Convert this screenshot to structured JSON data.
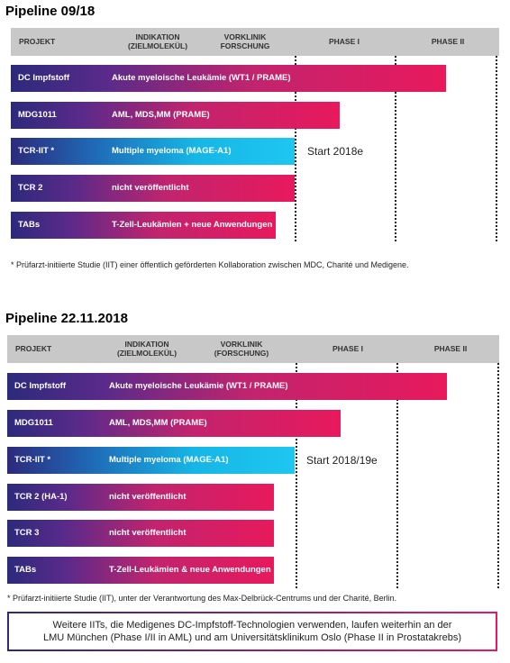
{
  "pipeline1": {
    "title": "Pipeline 09/18",
    "headers": {
      "projekt": "PROJEKT",
      "indikation": "INDIKATION\n(ZIELMOLEKÜL)",
      "vorklinik": "VORKLINIK\nFORSCHUNG",
      "phase1": "PHASE I",
      "phase2": "PHASE II"
    },
    "rows": [
      {
        "project": "DC Impfstoff",
        "indication": "Akute myeloische Leukämie (WT1 / PRAME)",
        "color": "#e8195c"
      },
      {
        "project": "MDG1011",
        "indication": "AML, MDS,MM (PRAME)",
        "color": "#e8195c"
      },
      {
        "project": "TCR-IIT *",
        "indication": "Multiple myeloma (MAGE-A1)",
        "color": "#1fc6f0"
      },
      {
        "project": "TCR 2",
        "indication": "nicht veröffentlicht",
        "color": "#e8195c"
      },
      {
        "project": "TABs",
        "indication": "T-Zell-Leukämien + neue Anwendungen",
        "color": "#e8195c"
      }
    ],
    "start_label": "Start 2018e",
    "footnote": "* Prüfarzt-initiierte Studie (IIT) einer öffentlich geförderten Kollaboration zwischen MDC, Charité und Medigene."
  },
  "pipeline2": {
    "title": "Pipeline 22.11.2018",
    "headers": {
      "projekt": "PROJEKT",
      "indikation": "INDIKATION\n(ZIELMOLEKÜL)",
      "vorklinik": "VORKLINIK\n(FORSCHUNG)",
      "phase1": "PHASE I",
      "phase2": "PHASE II"
    },
    "rows": [
      {
        "project": "DC Impfstoff",
        "indication": "Akute myeloische Leukämie (WT1 / PRAME)",
        "color": "#e8195c"
      },
      {
        "project": "MDG1011",
        "indication": "AML, MDS,MM (PRAME)",
        "color": "#e8195c"
      },
      {
        "project": "TCR-IIT *",
        "indication": "Multiple myeloma (MAGE-A1)",
        "color": "#1fc6f0"
      },
      {
        "project": "TCR 2 (HA-1)",
        "indication": "nicht veröffentlicht",
        "color": "#e8195c"
      },
      {
        "project": "TCR 3",
        "indication": "nicht veröffentlicht",
        "color": "#e8195c"
      },
      {
        "project": "TABs",
        "indication": "T-Zell-Leukämien & neue Anwendungen",
        "color": "#e8195c"
      }
    ],
    "start_label": "Start 2018/19e",
    "footnote": "* Prüfarzt-initiierte Studie (IIT), unter der Verantwortung des Max-Delbrück-Centrums und der Charité, Berlin.",
    "note_line1": "Weitere IITs, die Medigenes DC-Impfstoff-Technologien verwenden, laufen weiterhin an der",
    "note_line2": "LMU München (Phase I/II in AML) und am Universitätsklinikum Oslo (Phase II in Prostatakrebs)"
  }
}
